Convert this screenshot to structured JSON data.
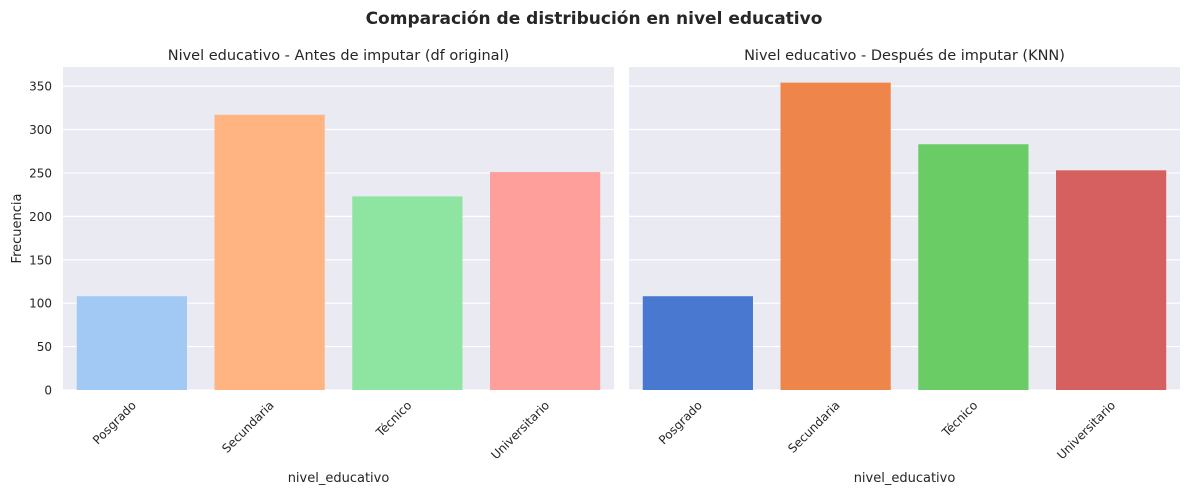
{
  "figure": {
    "suptitle": "Comparación de distribución en nivel educativo"
  },
  "chart_data": [
    {
      "type": "bar",
      "title": "Nivel educativo - Antes de imputar (df original)",
      "xlabel": "nivel_educativo",
      "ylabel": "Frecuencia",
      "categories": [
        "Posgrado",
        "Secundaria",
        "Técnico",
        "Universitario"
      ],
      "values": [
        108,
        317,
        223,
        251
      ],
      "colors": [
        "#a1c9f4",
        "#ffb482",
        "#8de5a1",
        "#ff9f9b"
      ],
      "ylim": [
        0,
        372
      ],
      "yticks": [
        0,
        50,
        100,
        150,
        200,
        250,
        300,
        350
      ],
      "grid": true,
      "background": "#eaeaf2"
    },
    {
      "type": "bar",
      "title": "Nivel educativo - Después de imputar (KNN)",
      "xlabel": "nivel_educativo",
      "ylabel": "",
      "categories": [
        "Posgrado",
        "Secundaria",
        "Técnico",
        "Universitario"
      ],
      "values": [
        108,
        354,
        283,
        253
      ],
      "colors": [
        "#4878d0",
        "#ee854a",
        "#6acc64",
        "#d65f5f"
      ],
      "ylim": [
        0,
        372
      ],
      "yticks": [
        0,
        50,
        100,
        150,
        200,
        250,
        300,
        350
      ],
      "grid": true,
      "background": "#eaeaf2"
    }
  ]
}
